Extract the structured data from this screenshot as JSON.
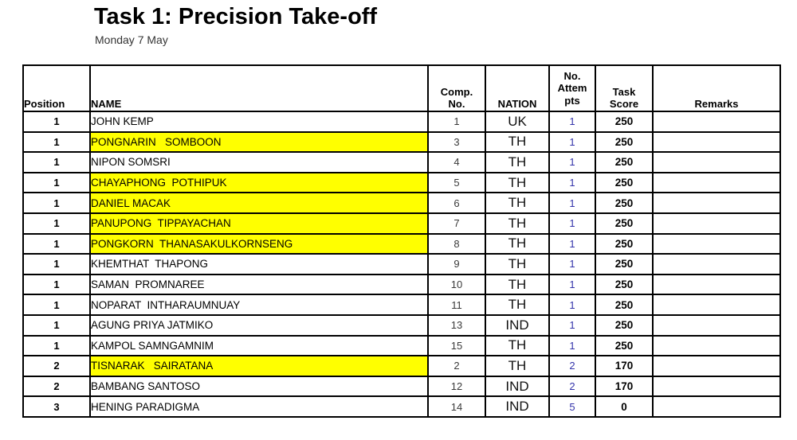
{
  "page": {
    "title": "Task 1: Precision Take-off",
    "subtitle": "Monday 7 May"
  },
  "colors": {
    "highlight_yellow": "#FFFF00",
    "attempts_blue": "#3333AA"
  },
  "table": {
    "headers": {
      "position": "Position",
      "name": "NAME",
      "comp_no": "Comp.\nNo.",
      "nation": "NATION",
      "attempts": "No.\nAttem\npts",
      "task_score": "Task\nScore",
      "remarks": "Remarks"
    },
    "rows": [
      {
        "position": "1",
        "name": "JOHN KEMP",
        "comp_no": "1",
        "nation": "UK",
        "attempts": "1",
        "task_score": "250",
        "remarks": "",
        "highlighted": false
      },
      {
        "position": "1",
        "name": "PONGNARIN   SOMBOON",
        "comp_no": "3",
        "nation": "TH",
        "attempts": "1",
        "task_score": "250",
        "remarks": "",
        "highlighted": true
      },
      {
        "position": "1",
        "name": "NIPON SOMSRI",
        "comp_no": "4",
        "nation": "TH",
        "attempts": "1",
        "task_score": "250",
        "remarks": "",
        "highlighted": false
      },
      {
        "position": "1",
        "name": "CHAYAPHONG  POTHIPUK",
        "comp_no": "5",
        "nation": "TH",
        "attempts": "1",
        "task_score": "250",
        "remarks": "",
        "highlighted": true
      },
      {
        "position": "1",
        "name": "DANIEL MACAK",
        "comp_no": "6",
        "nation": "TH",
        "attempts": "1",
        "task_score": "250",
        "remarks": "",
        "highlighted": true
      },
      {
        "position": "1",
        "name": "PANUPONG  TIPPAYACHAN",
        "comp_no": "7",
        "nation": "TH",
        "attempts": "1",
        "task_score": "250",
        "remarks": "",
        "highlighted": true
      },
      {
        "position": "1",
        "name": "PONGKORN  THANASAKULKORNSENG",
        "comp_no": "8",
        "nation": "TH",
        "attempts": "1",
        "task_score": "250",
        "remarks": "",
        "highlighted": true
      },
      {
        "position": "1",
        "name": "KHEMTHAT  THAPONG",
        "comp_no": "9",
        "nation": "TH",
        "attempts": "1",
        "task_score": "250",
        "remarks": "",
        "highlighted": false
      },
      {
        "position": "1",
        "name": "SAMAN  PROMNAREE",
        "comp_no": "10",
        "nation": "TH",
        "attempts": "1",
        "task_score": "250",
        "remarks": "",
        "highlighted": false
      },
      {
        "position": "1",
        "name": "NOPARAT  INTHARAUMNUAY",
        "comp_no": "11",
        "nation": "TH",
        "attempts": "1",
        "task_score": "250",
        "remarks": "",
        "highlighted": false
      },
      {
        "position": "1",
        "name": "AGUNG PRIYA JATMIKO",
        "comp_no": "13",
        "nation": "IND",
        "attempts": "1",
        "task_score": "250",
        "remarks": "",
        "highlighted": false
      },
      {
        "position": "1",
        "name": "KAMPOL SAMNGAMNIM",
        "comp_no": "15",
        "nation": "TH",
        "attempts": "1",
        "task_score": "250",
        "remarks": "",
        "highlighted": false
      },
      {
        "position": "2",
        "name": "TISNARAK   SAIRATANA",
        "comp_no": "2",
        "nation": "TH",
        "attempts": "2",
        "task_score": "170",
        "remarks": "",
        "highlighted": true
      },
      {
        "position": "2",
        "name": "BAMBANG SANTOSO",
        "comp_no": "12",
        "nation": "IND",
        "attempts": "2",
        "task_score": "170",
        "remarks": "",
        "highlighted": false
      },
      {
        "position": "3",
        "name": "HENING PARADIGMA",
        "comp_no": "14",
        "nation": "IND",
        "attempts": "5",
        "task_score": "0",
        "remarks": "",
        "highlighted": false
      }
    ]
  }
}
